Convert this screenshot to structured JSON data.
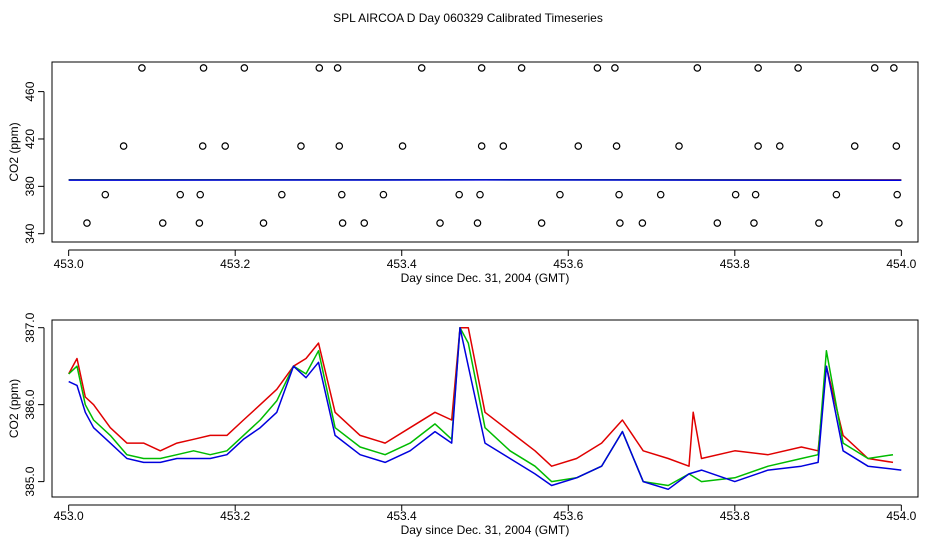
{
  "title": "SPL AIRCOA D  Day 060329  Calibrated Timeseries",
  "colors": {
    "red": "#e00000",
    "green": "#00bb00",
    "blue": "#0000dd",
    "axis": "#000000"
  },
  "chart_data": [
    {
      "type": "scatter",
      "xlabel": "Day since Dec. 31, 2004 (GMT)",
      "ylabel": "CO2 (ppm)",
      "xlim": [
        452.98,
        454.02
      ],
      "ylim": [
        333,
        485
      ],
      "xticks": [
        453.0,
        453.2,
        453.4,
        453.6,
        453.8,
        454.0
      ],
      "xtick_labels": [
        "453.0",
        "453.2",
        "453.4",
        "453.6",
        "453.8",
        "454.0"
      ],
      "yticks": [
        340,
        380,
        420,
        460
      ],
      "ytick_labels": [
        "340",
        "380",
        "420",
        "460"
      ],
      "markers": [
        {
          "x": 453.088,
          "y": 480
        },
        {
          "x": 453.162,
          "y": 480
        },
        {
          "x": 453.211,
          "y": 480
        },
        {
          "x": 453.301,
          "y": 480
        },
        {
          "x": 453.323,
          "y": 480
        },
        {
          "x": 453.424,
          "y": 480
        },
        {
          "x": 453.496,
          "y": 480
        },
        {
          "x": 453.544,
          "y": 480
        },
        {
          "x": 453.635,
          "y": 480
        },
        {
          "x": 453.656,
          "y": 480
        },
        {
          "x": 453.755,
          "y": 480
        },
        {
          "x": 453.828,
          "y": 480
        },
        {
          "x": 453.876,
          "y": 480
        },
        {
          "x": 453.968,
          "y": 480
        },
        {
          "x": 453.991,
          "y": 480
        },
        {
          "x": 453.066,
          "y": 414
        },
        {
          "x": 453.161,
          "y": 414
        },
        {
          "x": 453.188,
          "y": 414
        },
        {
          "x": 453.279,
          "y": 414
        },
        {
          "x": 453.325,
          "y": 414
        },
        {
          "x": 453.401,
          "y": 414
        },
        {
          "x": 453.496,
          "y": 414
        },
        {
          "x": 453.522,
          "y": 414
        },
        {
          "x": 453.612,
          "y": 414
        },
        {
          "x": 453.658,
          "y": 414
        },
        {
          "x": 453.733,
          "y": 414
        },
        {
          "x": 453.828,
          "y": 414
        },
        {
          "x": 453.854,
          "y": 414
        },
        {
          "x": 453.944,
          "y": 414
        },
        {
          "x": 453.994,
          "y": 414
        },
        {
          "x": 453.044,
          "y": 373
        },
        {
          "x": 453.134,
          "y": 373
        },
        {
          "x": 453.158,
          "y": 373
        },
        {
          "x": 453.256,
          "y": 373
        },
        {
          "x": 453.328,
          "y": 373
        },
        {
          "x": 453.378,
          "y": 373
        },
        {
          "x": 453.469,
          "y": 373
        },
        {
          "x": 453.494,
          "y": 373
        },
        {
          "x": 453.59,
          "y": 373
        },
        {
          "x": 453.661,
          "y": 373
        },
        {
          "x": 453.711,
          "y": 373
        },
        {
          "x": 453.801,
          "y": 373
        },
        {
          "x": 453.825,
          "y": 373
        },
        {
          "x": 453.922,
          "y": 373
        },
        {
          "x": 453.995,
          "y": 373
        },
        {
          "x": 453.022,
          "y": 349
        },
        {
          "x": 453.113,
          "y": 349
        },
        {
          "x": 453.157,
          "y": 349
        },
        {
          "x": 453.234,
          "y": 349
        },
        {
          "x": 453.329,
          "y": 349
        },
        {
          "x": 453.355,
          "y": 349
        },
        {
          "x": 453.446,
          "y": 349
        },
        {
          "x": 453.491,
          "y": 349
        },
        {
          "x": 453.568,
          "y": 349
        },
        {
          "x": 453.662,
          "y": 349
        },
        {
          "x": 453.689,
          "y": 349
        },
        {
          "x": 453.779,
          "y": 349
        },
        {
          "x": 453.823,
          "y": 349
        },
        {
          "x": 453.901,
          "y": 349
        },
        {
          "x": 453.997,
          "y": 349
        }
      ],
      "series": [
        {
          "name": "red",
          "color": "#e00000",
          "x": [
            453.0,
            453.5,
            454.0
          ],
          "values": [
            385.5,
            385.6,
            385.4
          ]
        },
        {
          "name": "green",
          "color": "#00bb00",
          "x": [
            453.0,
            453.5,
            454.0
          ],
          "values": [
            385.4,
            385.5,
            385.3
          ]
        },
        {
          "name": "blue",
          "color": "#0000dd",
          "x": [
            453.0,
            453.5,
            454.0
          ],
          "values": [
            385.3,
            385.4,
            385.2
          ]
        }
      ]
    },
    {
      "type": "line",
      "xlabel": "Day since Dec. 31, 2004 (GMT)",
      "ylabel": "CO2 (ppm)",
      "xlim": [
        452.98,
        454.02
      ],
      "ylim": [
        384.8,
        387.1
      ],
      "xticks": [
        453.0,
        453.2,
        453.4,
        453.6,
        453.8,
        454.0
      ],
      "xtick_labels": [
        "453.0",
        "453.2",
        "453.4",
        "453.6",
        "453.8",
        "454.0"
      ],
      "yticks": [
        385.0,
        386.0,
        387.0
      ],
      "ytick_labels": [
        "385.0",
        "386.0",
        "387.0"
      ],
      "series": [
        {
          "name": "red",
          "color": "#e00000",
          "x": [
            453.0,
            453.01,
            453.02,
            453.03,
            453.05,
            453.07,
            453.09,
            453.11,
            453.13,
            453.15,
            453.17,
            453.19,
            453.21,
            453.23,
            453.25,
            453.27,
            453.285,
            453.3,
            453.32,
            453.35,
            453.38,
            453.41,
            453.44,
            453.46,
            453.47,
            453.48,
            453.5,
            453.53,
            453.56,
            453.58,
            453.61,
            453.64,
            453.665,
            453.69,
            453.72,
            453.745,
            453.75,
            453.76,
            453.8,
            453.84,
            453.88,
            453.9,
            453.91,
            453.93,
            453.96,
            453.99
          ],
          "values": [
            386.4,
            386.6,
            386.1,
            386.0,
            385.7,
            385.5,
            385.5,
            385.4,
            385.5,
            385.55,
            385.6,
            385.6,
            385.8,
            386.0,
            386.2,
            386.5,
            386.6,
            386.8,
            385.9,
            385.6,
            385.5,
            385.7,
            385.9,
            385.8,
            387.0,
            387.0,
            385.9,
            385.65,
            385.4,
            385.2,
            385.3,
            385.5,
            385.8,
            385.4,
            385.3,
            385.2,
            385.9,
            385.3,
            385.4,
            385.35,
            385.45,
            385.4,
            386.5,
            385.6,
            385.3,
            385.25
          ]
        },
        {
          "name": "green",
          "color": "#00bb00",
          "x": [
            453.0,
            453.01,
            453.02,
            453.03,
            453.05,
            453.07,
            453.09,
            453.11,
            453.13,
            453.15,
            453.17,
            453.19,
            453.21,
            453.23,
            453.25,
            453.27,
            453.285,
            453.3,
            453.32,
            453.35,
            453.38,
            453.41,
            453.44,
            453.46,
            453.47,
            453.48,
            453.5,
            453.53,
            453.56,
            453.58,
            453.61,
            453.64,
            453.665,
            453.69,
            453.72,
            453.745,
            453.76,
            453.8,
            453.84,
            453.88,
            453.9,
            453.91,
            453.93,
            453.96,
            453.99
          ],
          "values": [
            386.4,
            386.5,
            386.0,
            385.8,
            385.6,
            385.35,
            385.3,
            385.3,
            385.35,
            385.4,
            385.35,
            385.4,
            385.6,
            385.8,
            386.05,
            386.5,
            386.4,
            386.7,
            385.7,
            385.45,
            385.35,
            385.5,
            385.75,
            385.55,
            387.0,
            386.8,
            385.7,
            385.4,
            385.2,
            385.0,
            385.05,
            385.2,
            385.65,
            385.0,
            384.95,
            385.1,
            385.0,
            385.05,
            385.2,
            385.3,
            385.35,
            386.7,
            385.5,
            385.3,
            385.35
          ]
        },
        {
          "name": "blue",
          "color": "#0000dd",
          "x": [
            453.0,
            453.01,
            453.02,
            453.03,
            453.05,
            453.07,
            453.09,
            453.11,
            453.13,
            453.15,
            453.17,
            453.19,
            453.21,
            453.23,
            453.25,
            453.27,
            453.285,
            453.3,
            453.32,
            453.35,
            453.38,
            453.41,
            453.44,
            453.46,
            453.47,
            453.48,
            453.5,
            453.53,
            453.56,
            453.58,
            453.61,
            453.64,
            453.665,
            453.69,
            453.72,
            453.745,
            453.76,
            453.8,
            453.84,
            453.88,
            453.9,
            453.91,
            453.93,
            453.96,
            454.0
          ],
          "values": [
            386.3,
            386.25,
            385.9,
            385.7,
            385.5,
            385.3,
            385.25,
            385.25,
            385.3,
            385.3,
            385.3,
            385.35,
            385.55,
            385.7,
            385.9,
            386.5,
            386.35,
            386.55,
            385.6,
            385.35,
            385.25,
            385.4,
            385.65,
            385.5,
            387.0,
            386.5,
            385.5,
            385.3,
            385.1,
            384.95,
            385.05,
            385.2,
            385.65,
            385.0,
            384.9,
            385.1,
            385.15,
            385.0,
            385.15,
            385.2,
            385.25,
            386.5,
            385.4,
            385.2,
            385.15
          ]
        }
      ]
    }
  ]
}
